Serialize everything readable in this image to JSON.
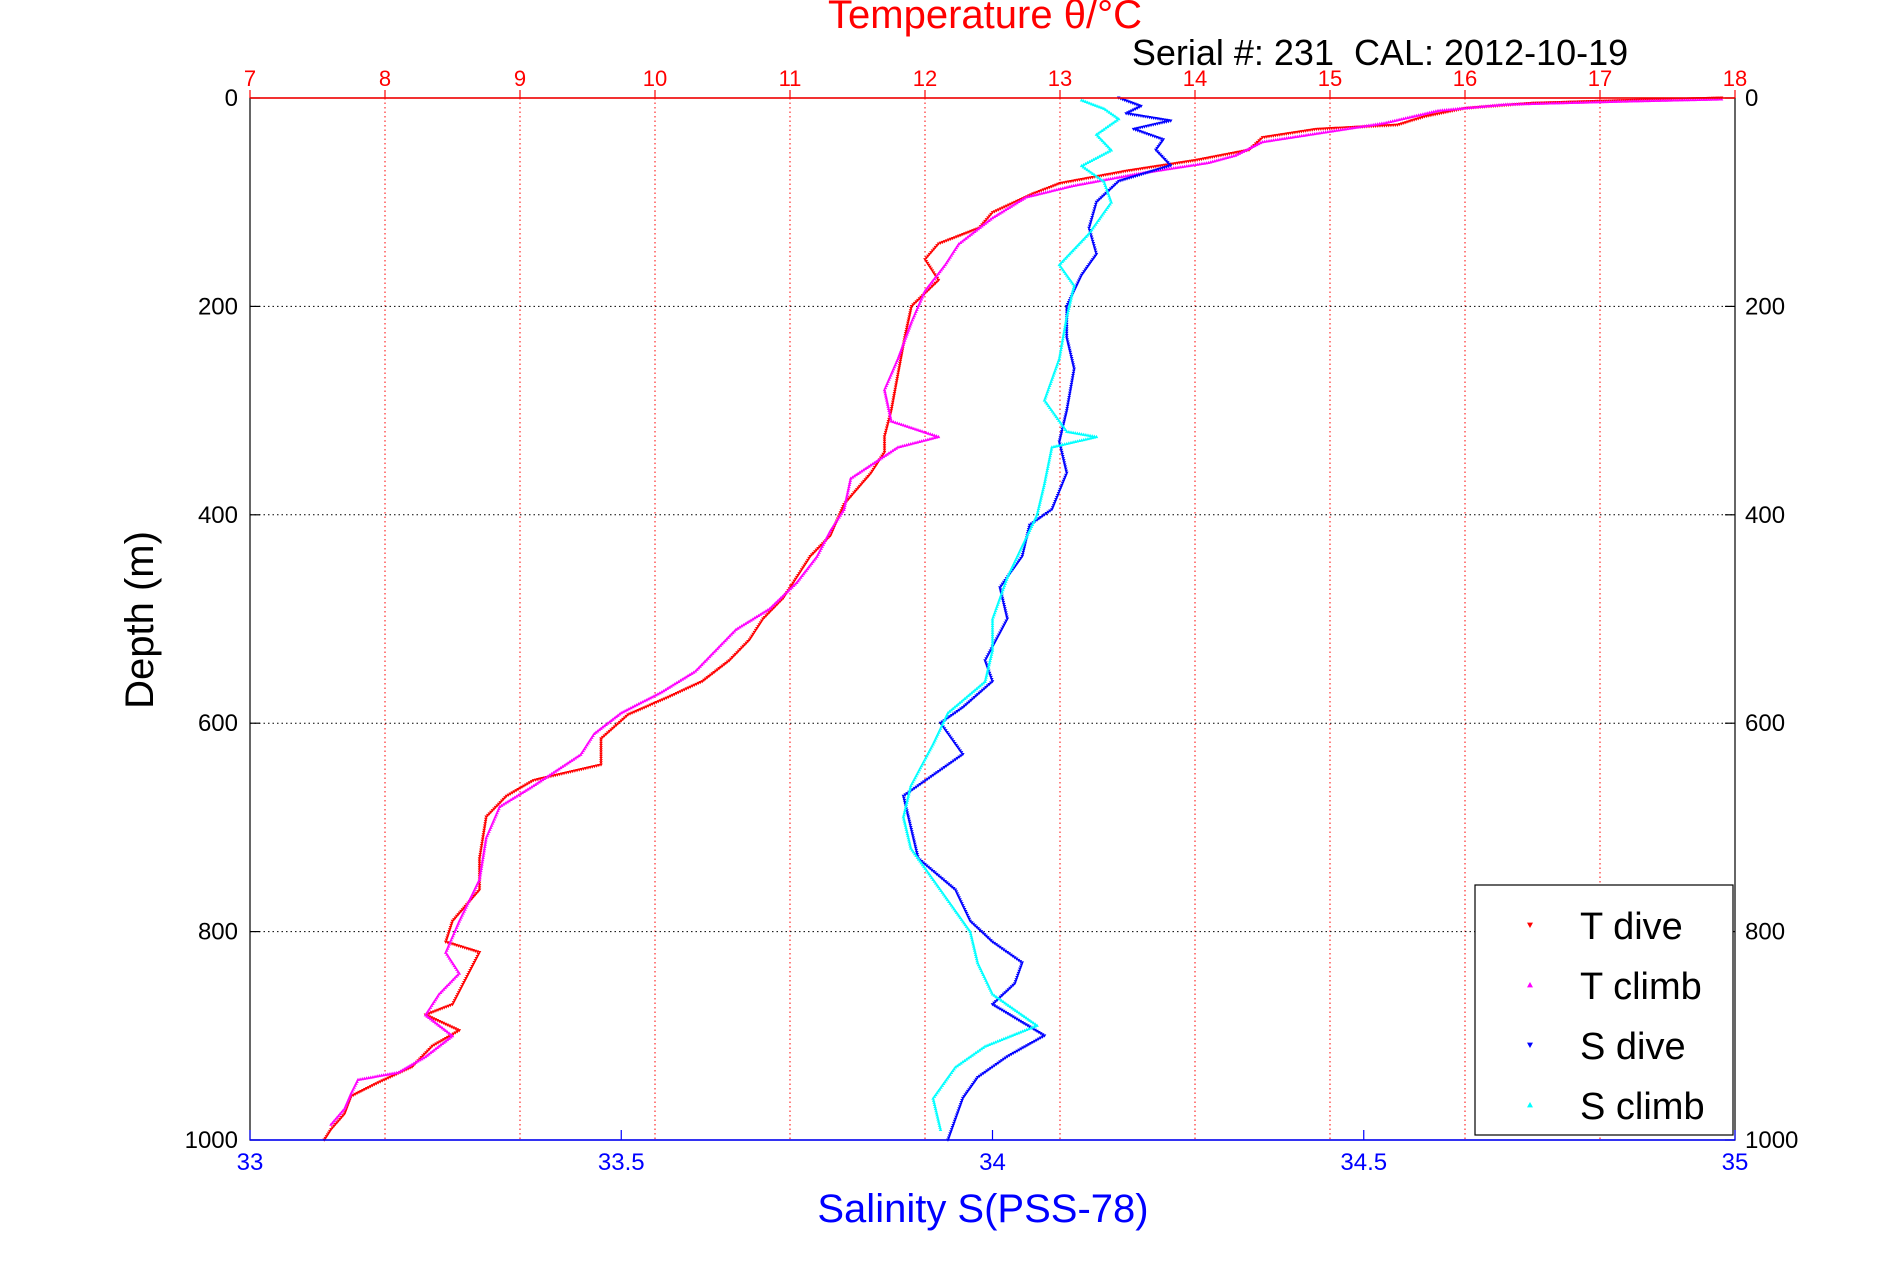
{
  "chart_data": {
    "type": "scatter",
    "title": "Temperature θ/°C",
    "subtitle": "Serial #: 231  CAL: 2012-10-19",
    "xlabel_bottom": "Salinity S(PSS-78)",
    "xlabel_top": "Temperature θ/°C",
    "ylabel": "Depth (m)",
    "xlim_bottom": [
      33,
      35
    ],
    "xlim_top": [
      7,
      18
    ],
    "ylim": [
      0,
      1000
    ],
    "y_reversed": true,
    "grid": true,
    "legend_position": "bottom-right",
    "top_ticks": [
      "7",
      "8",
      "9",
      "10",
      "11",
      "12",
      "13",
      "14",
      "15",
      "16",
      "17",
      "18"
    ],
    "bottom_ticks": [
      "33",
      "33.5",
      "34",
      "34.5",
      "35"
    ],
    "left_ticks": [
      "0",
      "200",
      "400",
      "600",
      "800",
      "1000"
    ],
    "right_ticks": [
      "0",
      "200",
      "400",
      "600",
      "800",
      "1000"
    ],
    "colors": {
      "t_dive": "#ff0000",
      "t_climb": "#ff00ff",
      "s_dive": "#0000ff",
      "s_climb": "#00ffff",
      "temp_axis": "#ff0000",
      "sal_axis": "#0000ff"
    },
    "series": [
      {
        "name": "T dive",
        "axis": "temperature",
        "color": "#ff0000",
        "marker": "triangle-down",
        "points": [
          [
            17.9,
            0
          ],
          [
            17.3,
            2
          ],
          [
            16.5,
            5
          ],
          [
            16.0,
            10
          ],
          [
            15.7,
            18
          ],
          [
            15.5,
            26
          ],
          [
            14.9,
            30
          ],
          [
            14.5,
            38
          ],
          [
            14.4,
            50
          ],
          [
            14.0,
            60
          ],
          [
            13.5,
            70
          ],
          [
            13.0,
            82
          ],
          [
            12.8,
            92
          ],
          [
            12.5,
            110
          ],
          [
            12.4,
            125
          ],
          [
            12.1,
            140
          ],
          [
            12.0,
            155
          ],
          [
            12.1,
            175
          ],
          [
            11.9,
            200
          ],
          [
            11.85,
            230
          ],
          [
            11.8,
            265
          ],
          [
            11.75,
            300
          ],
          [
            11.7,
            325
          ],
          [
            11.7,
            340
          ],
          [
            11.6,
            360
          ],
          [
            11.4,
            390
          ],
          [
            11.3,
            420
          ],
          [
            11.15,
            440
          ],
          [
            11.05,
            460
          ],
          [
            10.95,
            480
          ],
          [
            10.8,
            500
          ],
          [
            10.7,
            520
          ],
          [
            10.55,
            540
          ],
          [
            10.35,
            560
          ],
          [
            10.1,
            575
          ],
          [
            9.8,
            592
          ],
          [
            9.6,
            615
          ],
          [
            9.6,
            640
          ],
          [
            9.1,
            655
          ],
          [
            8.9,
            670
          ],
          [
            8.75,
            690
          ],
          [
            8.7,
            730
          ],
          [
            8.7,
            760
          ],
          [
            8.5,
            790
          ],
          [
            8.45,
            810
          ],
          [
            8.7,
            820
          ],
          [
            8.6,
            845
          ],
          [
            8.5,
            870
          ],
          [
            8.3,
            880
          ],
          [
            8.55,
            895
          ],
          [
            8.35,
            910
          ],
          [
            8.2,
            930
          ],
          [
            7.95,
            945
          ],
          [
            7.75,
            958
          ],
          [
            7.7,
            975
          ],
          [
            7.6,
            990
          ],
          [
            7.55,
            1000
          ]
        ]
      },
      {
        "name": "T climb",
        "axis": "temperature",
        "color": "#ff00ff",
        "marker": "triangle-up",
        "points": [
          [
            17.9,
            1
          ],
          [
            17.2,
            3
          ],
          [
            16.3,
            6
          ],
          [
            15.8,
            12
          ],
          [
            15.4,
            24
          ],
          [
            15.0,
            32
          ],
          [
            14.5,
            42
          ],
          [
            14.3,
            55
          ],
          [
            14.1,
            62
          ],
          [
            13.6,
            72
          ],
          [
            13.1,
            84
          ],
          [
            12.75,
            95
          ],
          [
            12.5,
            115
          ],
          [
            12.25,
            140
          ],
          [
            12.15,
            160
          ],
          [
            12.0,
            185
          ],
          [
            11.9,
            215
          ],
          [
            11.8,
            250
          ],
          [
            11.7,
            280
          ],
          [
            11.75,
            310
          ],
          [
            12.1,
            325
          ],
          [
            11.8,
            335
          ],
          [
            11.45,
            365
          ],
          [
            11.4,
            395
          ],
          [
            11.3,
            415
          ],
          [
            11.2,
            440
          ],
          [
            11.05,
            465
          ],
          [
            10.85,
            490
          ],
          [
            10.6,
            510
          ],
          [
            10.45,
            530
          ],
          [
            10.3,
            550
          ],
          [
            10.05,
            570
          ],
          [
            9.75,
            590
          ],
          [
            9.55,
            610
          ],
          [
            9.45,
            630
          ],
          [
            9.1,
            660
          ],
          [
            8.85,
            680
          ],
          [
            8.75,
            710
          ],
          [
            8.7,
            750
          ],
          [
            8.55,
            790
          ],
          [
            8.45,
            820
          ],
          [
            8.55,
            840
          ],
          [
            8.4,
            860
          ],
          [
            8.3,
            880
          ],
          [
            8.5,
            900
          ],
          [
            8.3,
            920
          ],
          [
            8.1,
            935
          ],
          [
            7.8,
            942
          ],
          [
            7.75,
            955
          ],
          [
            7.7,
            970
          ],
          [
            7.6,
            985
          ]
        ]
      },
      {
        "name": "S dive",
        "axis": "salinity",
        "color": "#0000ff",
        "marker": "triangle-down",
        "points": [
          [
            34.17,
            0
          ],
          [
            34.2,
            8
          ],
          [
            34.18,
            15
          ],
          [
            34.24,
            22
          ],
          [
            34.19,
            30
          ],
          [
            34.23,
            40
          ],
          [
            34.22,
            50
          ],
          [
            34.24,
            65
          ],
          [
            34.17,
            80
          ],
          [
            34.14,
            100
          ],
          [
            34.13,
            125
          ],
          [
            34.14,
            150
          ],
          [
            34.12,
            170
          ],
          [
            34.1,
            200
          ],
          [
            34.1,
            230
          ],
          [
            34.11,
            260
          ],
          [
            34.1,
            300
          ],
          [
            34.09,
            330
          ],
          [
            34.1,
            360
          ],
          [
            34.08,
            395
          ],
          [
            34.05,
            410
          ],
          [
            34.04,
            440
          ],
          [
            34.01,
            470
          ],
          [
            34.02,
            500
          ],
          [
            33.99,
            540
          ],
          [
            34.0,
            560
          ],
          [
            33.96,
            585
          ],
          [
            33.93,
            600
          ],
          [
            33.96,
            630
          ],
          [
            33.92,
            650
          ],
          [
            33.88,
            670
          ],
          [
            33.89,
            700
          ],
          [
            33.9,
            730
          ],
          [
            33.95,
            760
          ],
          [
            33.97,
            790
          ],
          [
            34.0,
            810
          ],
          [
            34.04,
            830
          ],
          [
            34.03,
            850
          ],
          [
            34.0,
            870
          ],
          [
            34.07,
            900
          ],
          [
            34.02,
            920
          ],
          [
            33.98,
            940
          ],
          [
            33.96,
            960
          ],
          [
            33.95,
            980
          ],
          [
            33.94,
            1000
          ]
        ]
      },
      {
        "name": "S climb",
        "axis": "salinity",
        "color": "#00ffff",
        "marker": "triangle-up",
        "points": [
          [
            34.12,
            2
          ],
          [
            34.15,
            10
          ],
          [
            34.17,
            20
          ],
          [
            34.14,
            35
          ],
          [
            34.16,
            50
          ],
          [
            34.12,
            65
          ],
          [
            34.15,
            80
          ],
          [
            34.16,
            100
          ],
          [
            34.13,
            130
          ],
          [
            34.09,
            160
          ],
          [
            34.11,
            180
          ],
          [
            34.1,
            210
          ],
          [
            34.09,
            250
          ],
          [
            34.07,
            290
          ],
          [
            34.1,
            320
          ],
          [
            34.14,
            325
          ],
          [
            34.08,
            335
          ],
          [
            34.07,
            370
          ],
          [
            34.06,
            400
          ],
          [
            34.04,
            430
          ],
          [
            34.02,
            460
          ],
          [
            34.0,
            500
          ],
          [
            34.0,
            530
          ],
          [
            33.99,
            560
          ],
          [
            33.94,
            590
          ],
          [
            33.92,
            620
          ],
          [
            33.89,
            660
          ],
          [
            33.88,
            690
          ],
          [
            33.89,
            720
          ],
          [
            33.92,
            750
          ],
          [
            33.95,
            780
          ],
          [
            33.97,
            800
          ],
          [
            33.98,
            830
          ],
          [
            34.0,
            860
          ],
          [
            34.06,
            890
          ],
          [
            33.99,
            910
          ],
          [
            33.95,
            930
          ],
          [
            33.92,
            960
          ],
          [
            33.93,
            990
          ]
        ]
      }
    ]
  },
  "legend": {
    "items": [
      {
        "label": "T dive",
        "color": "#ff0000",
        "marker": "triangle-down"
      },
      {
        "label": "T climb",
        "color": "#ff00ff",
        "marker": "triangle-up"
      },
      {
        "label": "S dive",
        "color": "#0000ff",
        "marker": "triangle-down"
      },
      {
        "label": "S climb",
        "color": "#00ffff",
        "marker": "triangle-up"
      }
    ]
  }
}
